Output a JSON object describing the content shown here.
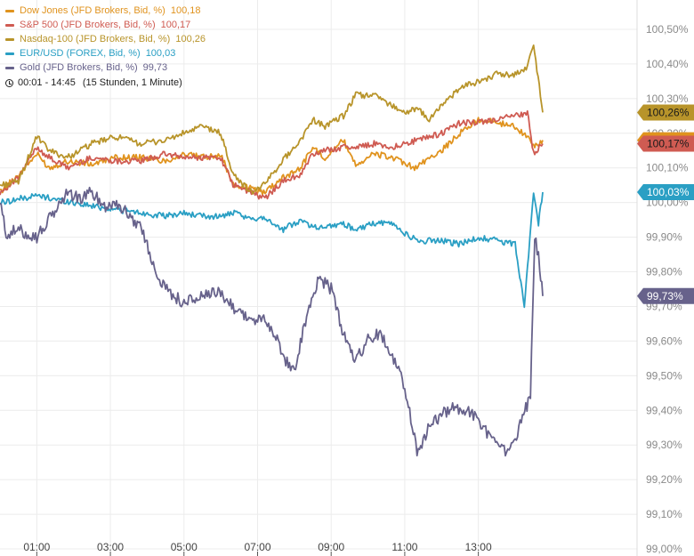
{
  "legend": {
    "items": [
      {
        "label": "Dow Jones (JFD Brokers, Bid, %)",
        "value": "100,18",
        "color": "#e0931e"
      },
      {
        "label": "S&P 500 (JFD Brokers, Bid, %)",
        "value": "100,17",
        "color": "#cf5b52"
      },
      {
        "label": "Nasdaq-100 (JFD Brokers, Bid, %)",
        "value": "100,26",
        "color": "#b8942a"
      },
      {
        "label": "EUR/USD (FOREX, Bid, %)",
        "value": "100,03",
        "color": "#2a9fc4"
      },
      {
        "label": "Gold (JFD Brokers, Bid, %)",
        "value": "99,73",
        "color": "#67628b"
      }
    ],
    "time_range": "00:01 - 14:45",
    "time_desc": "(15 Stunden, 1 Minute)"
  },
  "chart_data": {
    "type": "line",
    "x_ticks": [
      "01:00",
      "03:00",
      "05:00",
      "07:00",
      "09:00",
      "11:00",
      "13:00"
    ],
    "y_ticks": [
      "100,50%",
      "100,40%",
      "100,30%",
      "100,20%",
      "100,10%",
      "100,00%",
      "99,90%",
      "99,80%",
      "99,70%",
      "99,60%",
      "99,50%",
      "99,40%",
      "99,30%",
      "99,20%",
      "99,10%",
      "99,00%"
    ],
    "ylim": [
      99.0,
      100.5
    ],
    "xlim_minutes": [
      0,
      885
    ],
    "tick_values": [
      100.5,
      100.4,
      100.3,
      100.2,
      100.1,
      100.0,
      99.9,
      99.8,
      99.7,
      99.6,
      99.5,
      99.4,
      99.3,
      99.2,
      99.1,
      99.0
    ],
    "tick_minutes": [
      60,
      180,
      300,
      420,
      540,
      660,
      780
    ],
    "grid": true,
    "series": [
      {
        "name": "Dow Jones (JFD Brokers, Bid, %)",
        "color": "#e0931e",
        "end_label": "100,18%",
        "end_value": 100.18,
        "points": [
          [
            0,
            100.03
          ],
          [
            30,
            100.08
          ],
          [
            60,
            100.14
          ],
          [
            80,
            100.1
          ],
          [
            110,
            100.12
          ],
          [
            150,
            100.11
          ],
          [
            190,
            100.13
          ],
          [
            230,
            100.13
          ],
          [
            270,
            100.12
          ],
          [
            300,
            100.14
          ],
          [
            330,
            100.13
          ],
          [
            360,
            100.14
          ],
          [
            380,
            100.05
          ],
          [
            410,
            100.04
          ],
          [
            430,
            100.03
          ],
          [
            460,
            100.07
          ],
          [
            490,
            100.1
          ],
          [
            510,
            100.16
          ],
          [
            530,
            100.13
          ],
          [
            560,
            100.18
          ],
          [
            580,
            100.11
          ],
          [
            610,
            100.14
          ],
          [
            640,
            100.13
          ],
          [
            660,
            100.11
          ],
          [
            680,
            100.1
          ],
          [
            700,
            100.13
          ],
          [
            720,
            100.15
          ],
          [
            750,
            100.2
          ],
          [
            780,
            100.24
          ],
          [
            810,
            100.23
          ],
          [
            840,
            100.22
          ],
          [
            860,
            100.19
          ],
          [
            870,
            100.16
          ],
          [
            885,
            100.18
          ]
        ]
      },
      {
        "name": "S&P 500 (JFD Brokers, Bid, %)",
        "color": "#cf5b52",
        "end_label": "100,17%",
        "end_value": 100.17,
        "points": [
          [
            0,
            100.03
          ],
          [
            30,
            100.07
          ],
          [
            60,
            100.16
          ],
          [
            80,
            100.13
          ],
          [
            110,
            100.1
          ],
          [
            150,
            100.13
          ],
          [
            190,
            100.12
          ],
          [
            230,
            100.12
          ],
          [
            270,
            100.14
          ],
          [
            300,
            100.13
          ],
          [
            330,
            100.13
          ],
          [
            360,
            100.13
          ],
          [
            380,
            100.05
          ],
          [
            410,
            100.03
          ],
          [
            430,
            100.01
          ],
          [
            460,
            100.06
          ],
          [
            490,
            100.08
          ],
          [
            510,
            100.14
          ],
          [
            530,
            100.15
          ],
          [
            560,
            100.16
          ],
          [
            580,
            100.16
          ],
          [
            610,
            100.17
          ],
          [
            640,
            100.16
          ],
          [
            660,
            100.17
          ],
          [
            680,
            100.18
          ],
          [
            700,
            100.19
          ],
          [
            720,
            100.2
          ],
          [
            750,
            100.23
          ],
          [
            780,
            100.23
          ],
          [
            810,
            100.24
          ],
          [
            840,
            100.25
          ],
          [
            860,
            100.26
          ],
          [
            870,
            100.14
          ],
          [
            885,
            100.17
          ]
        ]
      },
      {
        "name": "Nasdaq-100 (JFD Brokers, Bid, %)",
        "color": "#b8942a",
        "end_label": "100,26%",
        "end_value": 100.26,
        "points": [
          [
            0,
            100.05
          ],
          [
            30,
            100.06
          ],
          [
            60,
            100.19
          ],
          [
            80,
            100.15
          ],
          [
            110,
            100.13
          ],
          [
            150,
            100.17
          ],
          [
            190,
            100.19
          ],
          [
            230,
            100.17
          ],
          [
            270,
            100.18
          ],
          [
            300,
            100.2
          ],
          [
            330,
            100.22
          ],
          [
            360,
            100.2
          ],
          [
            380,
            100.08
          ],
          [
            410,
            100.03
          ],
          [
            430,
            100.05
          ],
          [
            460,
            100.12
          ],
          [
            490,
            100.18
          ],
          [
            510,
            100.24
          ],
          [
            530,
            100.22
          ],
          [
            560,
            100.25
          ],
          [
            580,
            100.31
          ],
          [
            610,
            100.31
          ],
          [
            640,
            100.28
          ],
          [
            660,
            100.26
          ],
          [
            680,
            100.27
          ],
          [
            700,
            100.24
          ],
          [
            720,
            100.28
          ],
          [
            750,
            100.33
          ],
          [
            780,
            100.35
          ],
          [
            810,
            100.37
          ],
          [
            840,
            100.37
          ],
          [
            860,
            100.39
          ],
          [
            870,
            100.46
          ],
          [
            885,
            100.26
          ]
        ]
      },
      {
        "name": "EUR/USD (FOREX, Bid, %)",
        "color": "#2a9fc4",
        "end_label": "100,03%",
        "end_value": 100.03,
        "points": [
          [
            0,
            100.0
          ],
          [
            30,
            100.01
          ],
          [
            60,
            100.02
          ],
          [
            90,
            100.01
          ],
          [
            120,
            100.0
          ],
          [
            150,
            99.99
          ],
          [
            190,
            99.98
          ],
          [
            230,
            99.97
          ],
          [
            270,
            99.96
          ],
          [
            300,
            99.97
          ],
          [
            330,
            99.96
          ],
          [
            360,
            99.96
          ],
          [
            380,
            99.97
          ],
          [
            410,
            99.95
          ],
          [
            430,
            99.96
          ],
          [
            460,
            99.92
          ],
          [
            490,
            99.95
          ],
          [
            510,
            99.93
          ],
          [
            530,
            99.93
          ],
          [
            560,
            99.94
          ],
          [
            580,
            99.92
          ],
          [
            610,
            99.94
          ],
          [
            640,
            99.94
          ],
          [
            660,
            99.91
          ],
          [
            680,
            99.89
          ],
          [
            700,
            99.89
          ],
          [
            720,
            99.89
          ],
          [
            750,
            99.88
          ],
          [
            780,
            99.9
          ],
          [
            810,
            99.89
          ],
          [
            840,
            99.88
          ],
          [
            855,
            99.7
          ],
          [
            862,
            99.85
          ],
          [
            870,
            100.03
          ],
          [
            878,
            99.94
          ],
          [
            885,
            100.03
          ]
        ]
      },
      {
        "name": "Gold (JFD Brokers, Bid, %)",
        "color": "#67628b",
        "end_label": "99,73%",
        "end_value": 99.73,
        "points": [
          [
            0,
            100.0
          ],
          [
            10,
            99.91
          ],
          [
            30,
            99.92
          ],
          [
            60,
            99.9
          ],
          [
            80,
            99.95
          ],
          [
            110,
            100.03
          ],
          [
            130,
            100.01
          ],
          [
            150,
            100.03
          ],
          [
            170,
            99.99
          ],
          [
            190,
            100.0
          ],
          [
            200,
            99.98
          ],
          [
            230,
            99.93
          ],
          [
            250,
            99.82
          ],
          [
            270,
            99.75
          ],
          [
            300,
            99.71
          ],
          [
            330,
            99.73
          ],
          [
            360,
            99.74
          ],
          [
            380,
            99.7
          ],
          [
            410,
            99.66
          ],
          [
            430,
            99.66
          ],
          [
            450,
            99.62
          ],
          [
            460,
            99.55
          ],
          [
            480,
            99.52
          ],
          [
            500,
            99.67
          ],
          [
            520,
            99.78
          ],
          [
            540,
            99.75
          ],
          [
            560,
            99.62
          ],
          [
            580,
            99.54
          ],
          [
            600,
            99.61
          ],
          [
            620,
            99.62
          ],
          [
            640,
            99.56
          ],
          [
            660,
            99.47
          ],
          [
            680,
            99.28
          ],
          [
            700,
            99.35
          ],
          [
            720,
            99.39
          ],
          [
            740,
            99.41
          ],
          [
            760,
            99.4
          ],
          [
            780,
            99.37
          ],
          [
            810,
            99.3
          ],
          [
            830,
            99.27
          ],
          [
            850,
            99.37
          ],
          [
            865,
            99.44
          ],
          [
            872,
            99.9
          ],
          [
            880,
            99.82
          ],
          [
            885,
            99.73
          ]
        ]
      }
    ]
  }
}
